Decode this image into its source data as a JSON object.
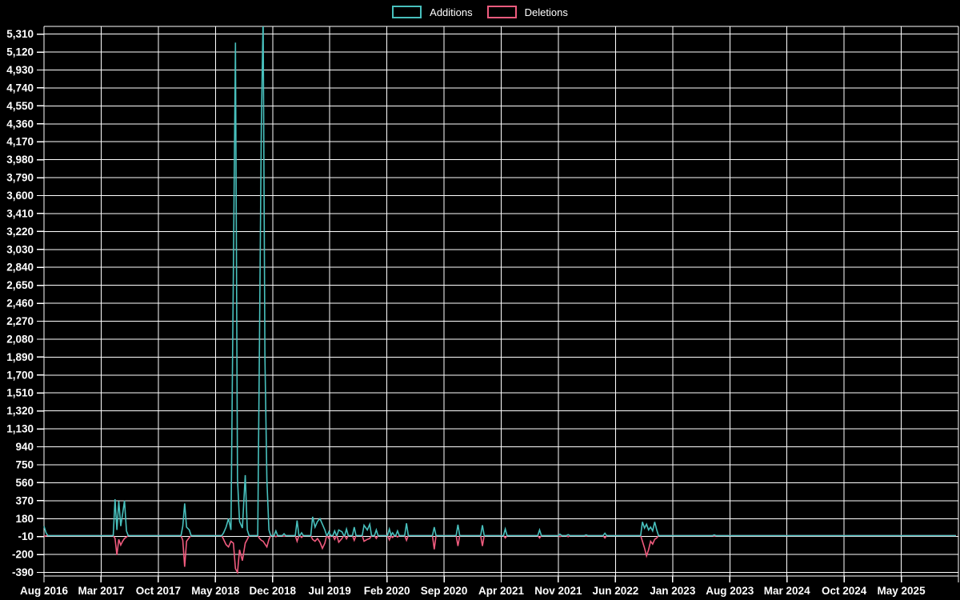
{
  "colors": {
    "background": "#000000",
    "grid": "#ffffff",
    "axis_text": "#ffffff",
    "additions": "#48c0bd",
    "deletions": "#f05b7e"
  },
  "chart_data": {
    "type": "line",
    "title": "",
    "legend": [
      {
        "label": "Additions",
        "color": "#48c0bd"
      },
      {
        "label": "Deletions",
        "color": "#f05b7e"
      }
    ],
    "legend_position": "top-center",
    "grid": true,
    "x_axis": {
      "start_label": "Aug 2016",
      "months_per_tick": 7,
      "tick_labels": [
        "Aug 2016",
        "Mar 2017",
        "Oct 2017",
        "May 2018",
        "Dec 2018",
        "Jul 2019",
        "Feb 2020",
        "Sep 2020",
        "Apr 2021",
        "Nov 2021",
        "Jun 2022",
        "Jan 2023",
        "Aug 2023",
        "Mar 2024",
        "Oct 2024",
        "May 2025"
      ]
    },
    "y_axis": {
      "min": -390,
      "max": 5310,
      "step": 190,
      "tick_labels": [
        "5,310",
        "5,120",
        "4,930",
        "4,740",
        "4,550",
        "4,360",
        "4,170",
        "3,980",
        "3,790",
        "3,600",
        "3,410",
        "3,220",
        "3,030",
        "2,840",
        "2,650",
        "2,460",
        "2,270",
        "2,080",
        "1,890",
        "1,700",
        "1,510",
        "1,320",
        "1,130",
        "940",
        "750",
        "560",
        "370",
        "180",
        "-10",
        "-200",
        "-390"
      ]
    },
    "series_note": "points are [months_since_Aug_2016, additions, deletions]; weekly data, values between listed points are 0",
    "points": [
      [
        0,
        100,
        -12
      ],
      [
        0.25,
        30,
        0
      ],
      [
        8.7,
        385,
        -30
      ],
      [
        8.93,
        60,
        -205
      ],
      [
        9.16,
        365,
        -40
      ],
      [
        9.4,
        100,
        -100
      ],
      [
        9.63,
        230,
        -60
      ],
      [
        9.86,
        370,
        -30
      ],
      [
        10.1,
        50,
        -15
      ],
      [
        17,
        100,
        -50
      ],
      [
        17.23,
        340,
        -330
      ],
      [
        17.46,
        90,
        -60
      ],
      [
        17.8,
        60,
        -20
      ],
      [
        22,
        30,
        -40
      ],
      [
        22.3,
        90,
        -95
      ],
      [
        22.6,
        180,
        -120
      ],
      [
        22.9,
        60,
        -60
      ],
      [
        23.2,
        2840,
        -80
      ],
      [
        23.45,
        5220,
        -350
      ],
      [
        23.7,
        600,
        -390
      ],
      [
        23.95,
        150,
        -150
      ],
      [
        24.3,
        80,
        -265
      ],
      [
        24.65,
        640,
        -80
      ],
      [
        24.9,
        60,
        -40
      ],
      [
        26.4,
        2130,
        -30
      ],
      [
        26.62,
        4330,
        -50
      ],
      [
        26.84,
        5520,
        -60
      ],
      [
        27.06,
        1890,
        -90
      ],
      [
        27.3,
        590,
        -120
      ],
      [
        27.55,
        60,
        -40
      ],
      [
        28.4,
        50,
        -12
      ],
      [
        29.4,
        20,
        -8
      ],
      [
        31,
        160,
        -60
      ],
      [
        31.55,
        30,
        -20
      ],
      [
        32.9,
        200,
        -40
      ],
      [
        33.2,
        90,
        -60
      ],
      [
        33.5,
        150,
        -30
      ],
      [
        33.8,
        180,
        -70
      ],
      [
        34.1,
        120,
        -135
      ],
      [
        34.4,
        60,
        -80
      ],
      [
        34.9,
        40,
        -30
      ],
      [
        35.6,
        50,
        -40
      ],
      [
        36.1,
        60,
        -70
      ],
      [
        36.5,
        40,
        -30
      ],
      [
        37.05,
        70,
        -35
      ],
      [
        38,
        90,
        -50
      ],
      [
        39.2,
        110,
        -60
      ],
      [
        39.6,
        60,
        -40
      ],
      [
        39.9,
        120,
        -30
      ],
      [
        40.7,
        60,
        -30
      ],
      [
        42.3,
        70,
        -45
      ],
      [
        42.7,
        30,
        -20
      ],
      [
        43.3,
        50,
        -15
      ],
      [
        44.4,
        130,
        -50
      ],
      [
        47.8,
        90,
        -145
      ],
      [
        50.7,
        115,
        -110
      ],
      [
        53.7,
        110,
        -110
      ],
      [
        56.5,
        70,
        -25
      ],
      [
        60.7,
        60,
        -25
      ],
      [
        63.2,
        15,
        -10
      ],
      [
        64.2,
        10,
        -12
      ],
      [
        66.4,
        8,
        -5
      ],
      [
        68.7,
        25,
        -25
      ],
      [
        73.3,
        145,
        -60
      ],
      [
        73.55,
        80,
        -130
      ],
      [
        73.8,
        120,
        -215
      ],
      [
        74.05,
        60,
        -150
      ],
      [
        74.3,
        90,
        -60
      ],
      [
        74.55,
        50,
        -90
      ],
      [
        74.8,
        145,
        -40
      ],
      [
        75.05,
        60,
        -25
      ],
      [
        82.1,
        8,
        -6
      ]
    ],
    "data_end_month": 111.7
  }
}
